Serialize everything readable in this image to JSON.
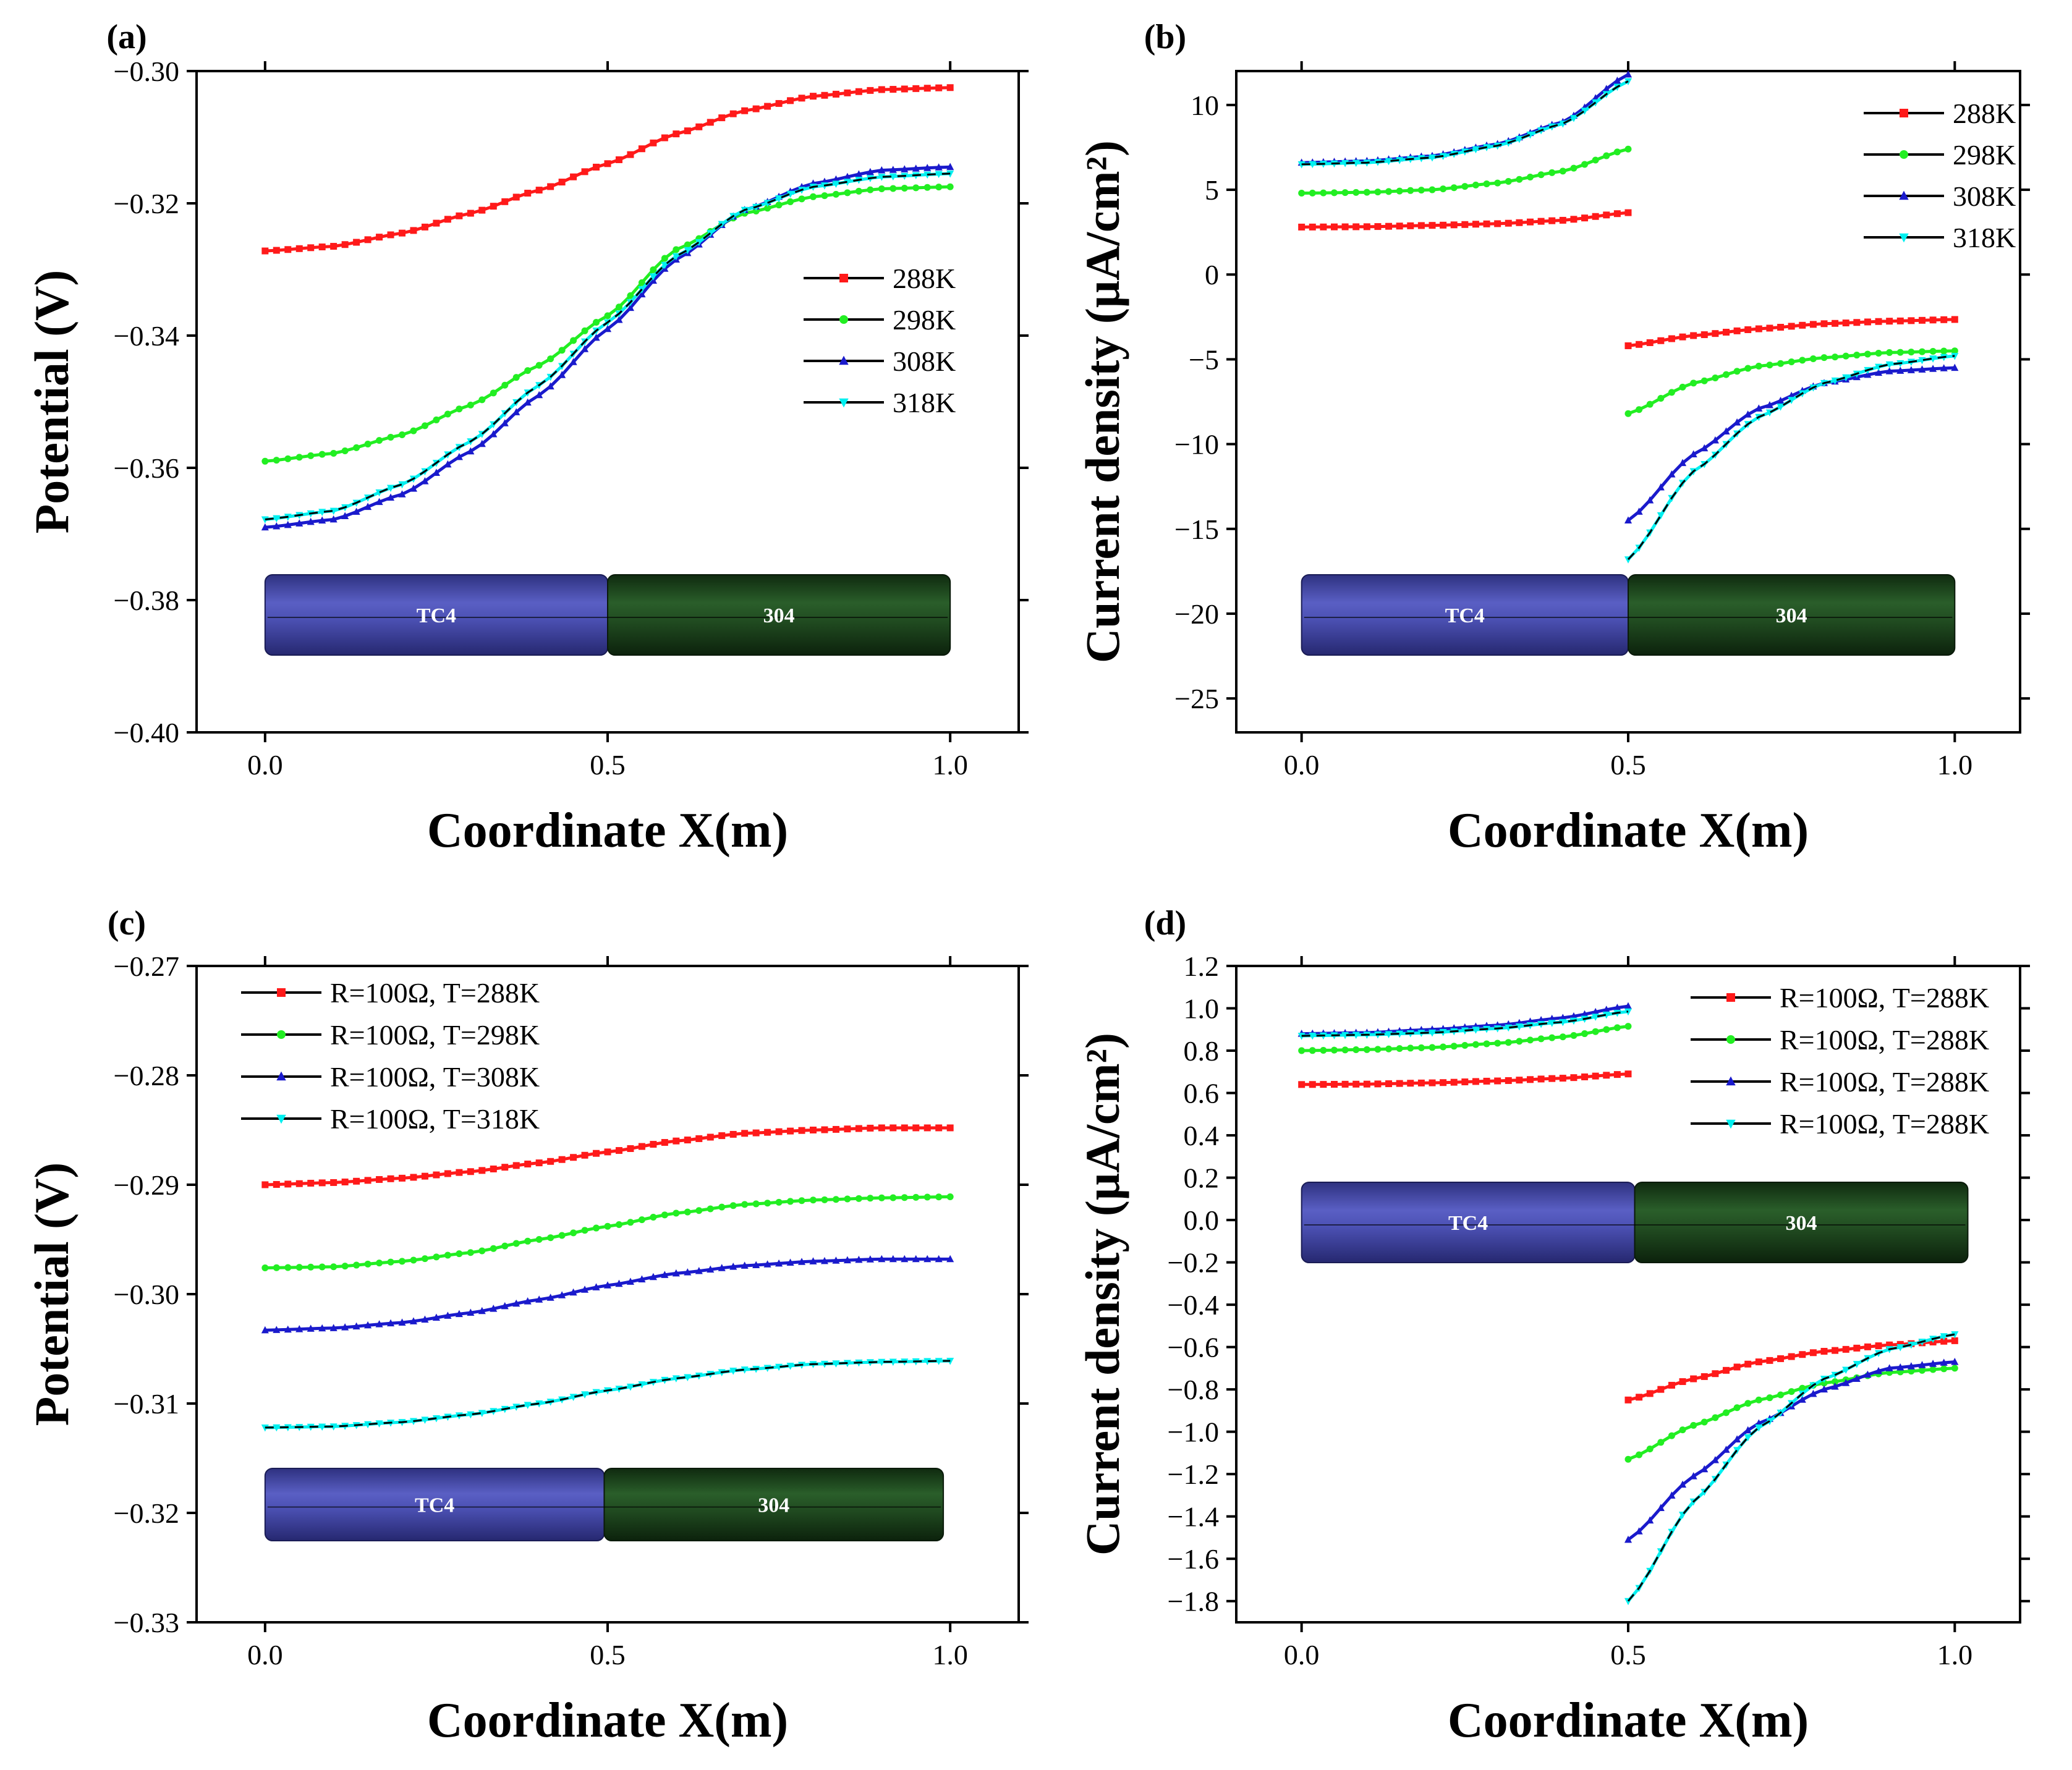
{
  "figure": {
    "colors": {
      "288K": "#ff1a1a",
      "298K": "#22ee22",
      "308K": "#1a1acc",
      "318K": "#00f0f0",
      "axis": "#000000",
      "tc4_rod": "#4a4fb0",
      "ss304_rod": "#1f4d1f"
    }
  },
  "chart_data": [
    {
      "id": "a",
      "panel_label": "(a)",
      "type": "line",
      "xlabel": "Coordinate X(m)",
      "ylabel": "Potential (V)",
      "xlim": [
        -0.1,
        1.1
      ],
      "ylim": [
        -0.4,
        -0.3
      ],
      "xticks": [
        0.0,
        0.5,
        1.0
      ],
      "xtick_labels": [
        "0.0",
        "0.5",
        "1.0"
      ],
      "yticks": [
        -0.4,
        -0.38,
        -0.36,
        -0.34,
        -0.32,
        -0.3
      ],
      "ytick_labels": [
        "−0.40",
        "−0.38",
        "−0.36",
        "−0.34",
        "−0.32",
        "−0.30"
      ],
      "legend_position": "center-right",
      "rod_labels": [
        "TC4",
        "304"
      ],
      "x": [
        0.0,
        0.1,
        0.2,
        0.3,
        0.4,
        0.5,
        0.6,
        0.7,
        0.8,
        0.9,
        1.0
      ],
      "series": [
        {
          "name": "288K",
          "color_key": "288K",
          "marker": "square",
          "values": [
            -0.3272,
            -0.3265,
            -0.3245,
            -0.3215,
            -0.318,
            -0.314,
            -0.3095,
            -0.306,
            -0.3038,
            -0.3028,
            -0.3025
          ]
        },
        {
          "name": "298K",
          "color_key": "298K",
          "marker": "circle",
          "values": [
            -0.359,
            -0.3578,
            -0.355,
            -0.3505,
            -0.3445,
            -0.337,
            -0.327,
            -0.3215,
            -0.319,
            -0.3178,
            -0.3175
          ]
        },
        {
          "name": "308K",
          "color_key": "308K",
          "marker": "triangle",
          "values": [
            -0.369,
            -0.3678,
            -0.364,
            -0.3575,
            -0.349,
            -0.339,
            -0.3285,
            -0.321,
            -0.317,
            -0.315,
            -0.3145
          ]
        },
        {
          "name": "318K",
          "color_key": "318K",
          "marker": "triangle-down",
          "values": [
            -0.3678,
            -0.3665,
            -0.3625,
            -0.356,
            -0.3475,
            -0.338,
            -0.328,
            -0.321,
            -0.3175,
            -0.316,
            -0.3155
          ]
        }
      ]
    },
    {
      "id": "b",
      "panel_label": "(b)",
      "type": "line",
      "xlabel": "Coordinate X(m)",
      "ylabel": "Current density (μA/cm²)",
      "xlim": [
        -0.1,
        1.1
      ],
      "ylim": [
        -27,
        12
      ],
      "xticks": [
        0.0,
        0.5,
        1.0
      ],
      "xtick_labels": [
        "0.0",
        "0.5",
        "1.0"
      ],
      "yticks": [
        -25,
        -20,
        -15,
        -10,
        -5,
        0,
        5,
        10
      ],
      "ytick_labels": [
        "−25",
        "−20",
        "−15",
        "−10",
        "−5",
        "0",
        "5",
        "10"
      ],
      "legend_position": "top-right",
      "rod_labels": [
        "TC4",
        "304"
      ],
      "series": [
        {
          "name": "288K",
          "color_key": "288K",
          "marker": "square",
          "x_left": [
            0.0,
            0.1,
            0.2,
            0.3,
            0.4,
            0.5
          ],
          "left": [
            2.8,
            2.82,
            2.9,
            3.0,
            3.2,
            3.65
          ],
          "x_right": [
            0.5,
            0.6,
            0.7,
            0.8,
            0.9,
            1.0
          ],
          "right": [
            -4.2,
            -3.6,
            -3.2,
            -2.9,
            -2.75,
            -2.65
          ]
        },
        {
          "name": "298K",
          "color_key": "298K",
          "marker": "circle",
          "x_left": [
            0.0,
            0.1,
            0.2,
            0.3,
            0.4,
            0.5
          ],
          "left": [
            4.8,
            4.85,
            5.0,
            5.4,
            6.1,
            7.4
          ],
          "x_right": [
            0.5,
            0.6,
            0.7,
            0.8,
            0.9,
            1.0
          ],
          "right": [
            -8.2,
            -6.4,
            -5.4,
            -4.9,
            -4.6,
            -4.5
          ]
        },
        {
          "name": "308K",
          "color_key": "308K",
          "marker": "triangle",
          "x_left": [
            0.0,
            0.1,
            0.2,
            0.3,
            0.4,
            0.5
          ],
          "left": [
            6.6,
            6.7,
            7.0,
            7.7,
            9.0,
            11.8
          ],
          "x_right": [
            0.5,
            0.6,
            0.7,
            0.8,
            0.9,
            1.0
          ],
          "right": [
            -14.5,
            -10.6,
            -7.9,
            -6.4,
            -5.7,
            -5.5
          ]
        },
        {
          "name": "318K",
          "color_key": "318K",
          "marker": "triangle-down",
          "x_left": [
            0.0,
            0.1,
            0.2,
            0.3,
            0.4,
            0.5
          ],
          "left": [
            6.5,
            6.6,
            6.9,
            7.6,
            8.9,
            11.4
          ],
          "x_right": [
            0.5,
            0.6,
            0.7,
            0.8,
            0.9,
            1.0
          ],
          "right": [
            -16.8,
            -11.6,
            -8.4,
            -6.4,
            -5.3,
            -4.8
          ]
        }
      ]
    },
    {
      "id": "c",
      "panel_label": "(c)",
      "type": "line",
      "xlabel": "Coordinate X(m)",
      "ylabel": "Potential (V)",
      "xlim": [
        -0.1,
        1.1
      ],
      "ylim": [
        -0.33,
        -0.27
      ],
      "xticks": [
        0.0,
        0.5,
        1.0
      ],
      "xtick_labels": [
        "0.0",
        "0.5",
        "1.0"
      ],
      "yticks": [
        -0.33,
        -0.32,
        -0.31,
        -0.3,
        -0.29,
        -0.28,
        -0.27
      ],
      "ytick_labels": [
        "−0.33",
        "−0.32",
        "−0.31",
        "−0.30",
        "−0.29",
        "−0.28",
        "−0.27"
      ],
      "legend_position": "top-left",
      "rod_labels": [
        "TC4",
        "304"
      ],
      "x": [
        0.0,
        0.1,
        0.2,
        0.3,
        0.4,
        0.5,
        0.6,
        0.7,
        0.8,
        0.9,
        1.0
      ],
      "series": [
        {
          "name": "R=100Ω, T=288K",
          "color_key": "288K",
          "marker": "square",
          "values": [
            -0.29,
            -0.2898,
            -0.2894,
            -0.2888,
            -0.288,
            -0.287,
            -0.286,
            -0.2853,
            -0.285,
            -0.2848,
            -0.2848
          ]
        },
        {
          "name": "R=100Ω, T=298K",
          "color_key": "298K",
          "marker": "circle",
          "values": [
            -0.2976,
            -0.2975,
            -0.297,
            -0.2962,
            -0.295,
            -0.2938,
            -0.2926,
            -0.2918,
            -0.2914,
            -0.2912,
            -0.2911
          ]
        },
        {
          "name": "R=100Ω, T=308K",
          "color_key": "308K",
          "marker": "triangle",
          "values": [
            -0.3033,
            -0.3031,
            -0.3026,
            -0.3017,
            -0.3005,
            -0.2992,
            -0.2981,
            -0.2974,
            -0.297,
            -0.2968,
            -0.2968
          ]
        },
        {
          "name": "R=100Ω, T=318K",
          "color_key": "318K",
          "marker": "triangle-down",
          "values": [
            -0.3122,
            -0.3121,
            -0.3117,
            -0.311,
            -0.31,
            -0.3088,
            -0.3077,
            -0.3069,
            -0.3064,
            -0.3062,
            -0.3061
          ]
        }
      ]
    },
    {
      "id": "d",
      "panel_label": "(d)",
      "type": "line",
      "xlabel": "Coordinate X(m)",
      "ylabel": "Current density (μA/cm²)",
      "xlim": [
        -0.1,
        1.1
      ],
      "ylim": [
        -1.9,
        1.2
      ],
      "xticks": [
        0.0,
        0.5,
        1.0
      ],
      "xtick_labels": [
        "0.0",
        "0.5",
        "1.0"
      ],
      "yticks": [
        -1.8,
        -1.6,
        -1.4,
        -1.2,
        -1.0,
        -0.8,
        -0.6,
        -0.4,
        -0.2,
        0.0,
        0.2,
        0.4,
        0.6,
        0.8,
        1.0,
        1.2
      ],
      "ytick_labels": [
        "−1.8",
        "−1.6",
        "−1.4",
        "−1.2",
        "−1.0",
        "−0.8",
        "−0.6",
        "−0.4",
        "−0.2",
        "0.0",
        "0.2",
        "0.4",
        "0.6",
        "0.8",
        "1.0",
        "1.2"
      ],
      "legend_position": "top-right",
      "rod_labels": [
        "TC4",
        "304"
      ],
      "series": [
        {
          "name": "R=100Ω, T=288K",
          "color_key": "288K",
          "marker": "square",
          "x_left": [
            0.0,
            0.1,
            0.2,
            0.3,
            0.4,
            0.5
          ],
          "left": [
            0.64,
            0.642,
            0.648,
            0.657,
            0.67,
            0.69
          ],
          "x_right": [
            0.5,
            0.6,
            0.7,
            0.8,
            0.9,
            1.0
          ],
          "right": [
            -0.85,
            -0.75,
            -0.67,
            -0.62,
            -0.59,
            -0.57
          ]
        },
        {
          "name": "R=100Ω, T=288K",
          "color_key": "298K",
          "marker": "circle",
          "x_left": [
            0.0,
            0.1,
            0.2,
            0.3,
            0.4,
            0.5
          ],
          "left": [
            0.8,
            0.805,
            0.815,
            0.835,
            0.865,
            0.915
          ],
          "x_right": [
            0.5,
            0.6,
            0.7,
            0.8,
            0.9,
            1.0
          ],
          "right": [
            -1.13,
            -0.97,
            -0.85,
            -0.77,
            -0.72,
            -0.7
          ]
        },
        {
          "name": "R=100Ω, T=288K",
          "color_key": "308K",
          "marker": "triangle",
          "x_left": [
            0.0,
            0.1,
            0.2,
            0.3,
            0.4,
            0.5
          ],
          "left": [
            0.88,
            0.885,
            0.9,
            0.92,
            0.955,
            1.01
          ],
          "x_right": [
            0.5,
            0.6,
            0.7,
            0.8,
            0.9,
            1.0
          ],
          "right": [
            -1.51,
            -1.21,
            -0.96,
            -0.8,
            -0.7,
            -0.67
          ]
        },
        {
          "name": "R=100Ω, T=288K",
          "color_key": "318K",
          "marker": "triangle-down",
          "x_left": [
            0.0,
            0.1,
            0.2,
            0.3,
            0.4,
            0.5
          ],
          "left": [
            0.87,
            0.875,
            0.885,
            0.905,
            0.935,
            0.985
          ],
          "x_right": [
            0.5,
            0.6,
            0.7,
            0.8,
            0.9,
            1.0
          ],
          "right": [
            -1.8,
            -1.33,
            -0.98,
            -0.75,
            -0.61,
            -0.54
          ]
        }
      ]
    }
  ]
}
